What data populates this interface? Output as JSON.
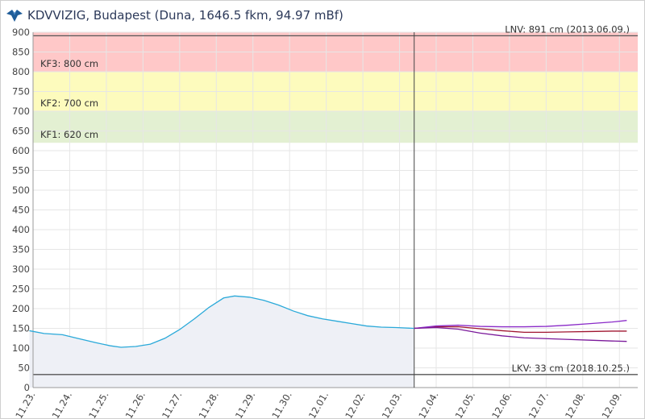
{
  "header": {
    "title": "KDVVIZIG, Budapest (Duna, 1646.5 fkm, 94.97 mBf)",
    "logo_icon": "kdvvizig-logo-icon"
  },
  "chart_data": {
    "type": "line",
    "xlabel": "",
    "ylabel": "",
    "ylim": [
      0,
      900
    ],
    "yticks": [
      0,
      50,
      100,
      150,
      200,
      250,
      300,
      350,
      400,
      450,
      500,
      550,
      600,
      650,
      700,
      750,
      800,
      850,
      900
    ],
    "xlim": [
      0,
      16.5
    ],
    "xticks": [
      {
        "x": 0,
        "label": "11.23."
      },
      {
        "x": 1,
        "label": "11.24."
      },
      {
        "x": 2,
        "label": "11.25."
      },
      {
        "x": 3,
        "label": "11.26."
      },
      {
        "x": 4,
        "label": "11.27."
      },
      {
        "x": 5,
        "label": "11.28."
      },
      {
        "x": 6,
        "label": "11.29."
      },
      {
        "x": 7,
        "label": "11.30."
      },
      {
        "x": 8,
        "label": "12.01."
      },
      {
        "x": 9,
        "label": "12.02."
      },
      {
        "x": 10,
        "label": "12.03."
      },
      {
        "x": 11,
        "label": "12.04."
      },
      {
        "x": 12,
        "label": "12.05."
      },
      {
        "x": 13,
        "label": "12.06."
      },
      {
        "x": 14,
        "label": "12.07."
      },
      {
        "x": 15,
        "label": "12.08."
      },
      {
        "x": 16,
        "label": "12.09."
      }
    ],
    "grid": true,
    "now_x": 10.4,
    "bands": [
      {
        "from": 800,
        "to": 900,
        "color": "#ffc8c8",
        "label": "KF3: 800 cm"
      },
      {
        "from": 700,
        "to": 800,
        "color": "#fdfbbd",
        "label": "KF2: 700 cm"
      },
      {
        "from": 620,
        "to": 700,
        "color": "#e3f0d2",
        "label": "KF1: 620 cm"
      }
    ],
    "reference_lines": [
      {
        "y": 891,
        "label": "LNV: 891 cm (2013.06.09.)"
      },
      {
        "y": 33,
        "label": "LKV: 33 cm (2018.10.25.)"
      }
    ],
    "series": [
      {
        "color": "#2aa9d9",
        "fill": "#eef0f6",
        "x": [
          -0.1,
          0.3,
          0.8,
          1.2,
          1.7,
          2.1,
          2.4,
          2.8,
          3.2,
          3.6,
          4.0,
          4.4,
          4.8,
          5.2,
          5.5,
          5.9,
          6.3,
          6.7,
          7.1,
          7.5,
          7.9,
          8.3,
          8.7,
          9.1,
          9.5,
          9.9,
          10.4
        ],
        "y": [
          144,
          137,
          134,
          125,
          114,
          106,
          102,
          104,
          110,
          125,
          147,
          174,
          203,
          227,
          232,
          229,
          221,
          209,
          194,
          182,
          174,
          168,
          162,
          156,
          153,
          152,
          150
        ]
      },
      {
        "color": "#a01630",
        "x": [
          10.4,
          11.0,
          11.6,
          12.2,
          12.8,
          13.4,
          14.0,
          14.6,
          15.2,
          15.8,
          16.2
        ],
        "y": [
          150,
          154,
          154,
          149,
          144,
          140,
          140,
          141,
          142,
          143,
          143
        ]
      },
      {
        "color": "#8a2ac8",
        "x": [
          10.4,
          11.0,
          11.6,
          12.2,
          12.8,
          13.4,
          14.0,
          14.6,
          15.2,
          15.8,
          16.2
        ],
        "y": [
          150,
          156,
          158,
          155,
          154,
          154,
          155,
          158,
          162,
          166,
          170
        ]
      },
      {
        "color": "#7a189a",
        "x": [
          10.4,
          11.0,
          11.6,
          12.2,
          12.8,
          13.4,
          14.0,
          14.6,
          15.2,
          15.8,
          16.2
        ],
        "y": [
          150,
          152,
          148,
          138,
          131,
          126,
          124,
          122,
          120,
          118,
          117
        ]
      }
    ]
  }
}
